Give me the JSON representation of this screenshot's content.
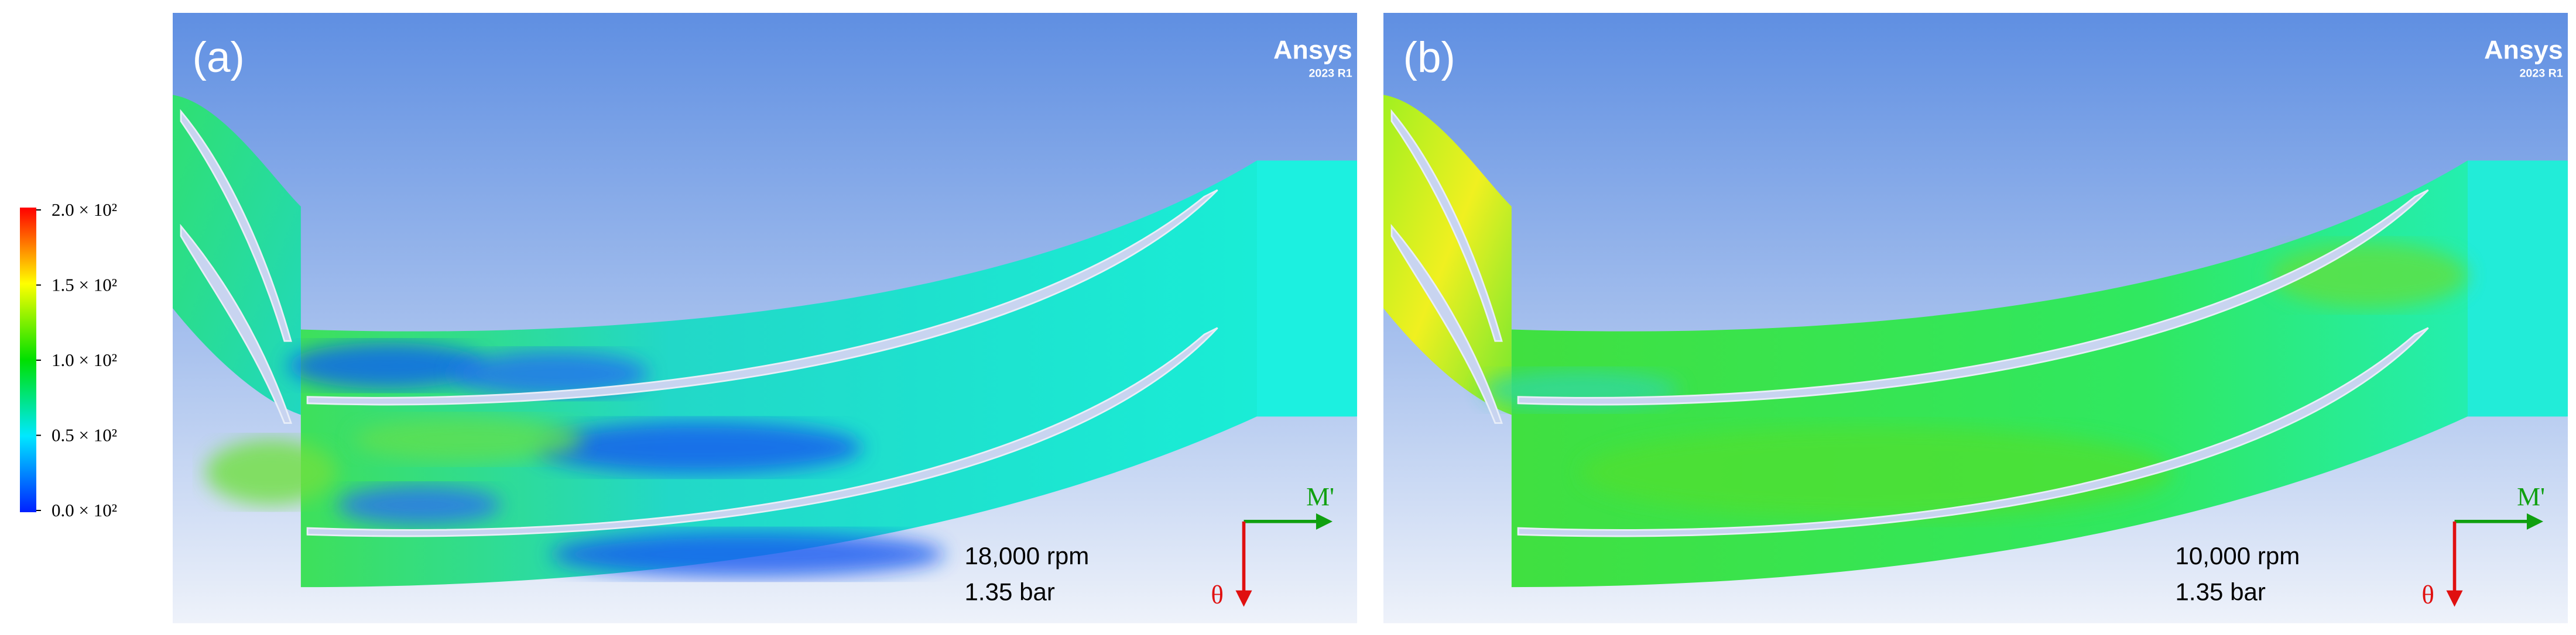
{
  "colorbar": {
    "ticks": [
      {
        "value": 200,
        "label": "2.0 × 10²"
      },
      {
        "value": 150,
        "label": "1.5 × 10²"
      },
      {
        "value": 100,
        "label": "1.0 × 10²"
      },
      {
        "value": 50,
        "label": "0.5 × 10²"
      },
      {
        "value": 0,
        "label": "0.0 × 10²"
      }
    ]
  },
  "panels": [
    {
      "label": "(a)",
      "brand": "Ansys",
      "version": "2023 R1",
      "speed": "18,000 rpm",
      "pressure": "1.35 bar",
      "axis_m": "M'",
      "axis_theta": "θ"
    },
    {
      "label": "(b)",
      "brand": "Ansys",
      "version": "2023 R1",
      "speed": "10,000 rpm",
      "pressure": "1.35 bar",
      "axis_m": "M'",
      "axis_theta": "θ"
    }
  ]
}
